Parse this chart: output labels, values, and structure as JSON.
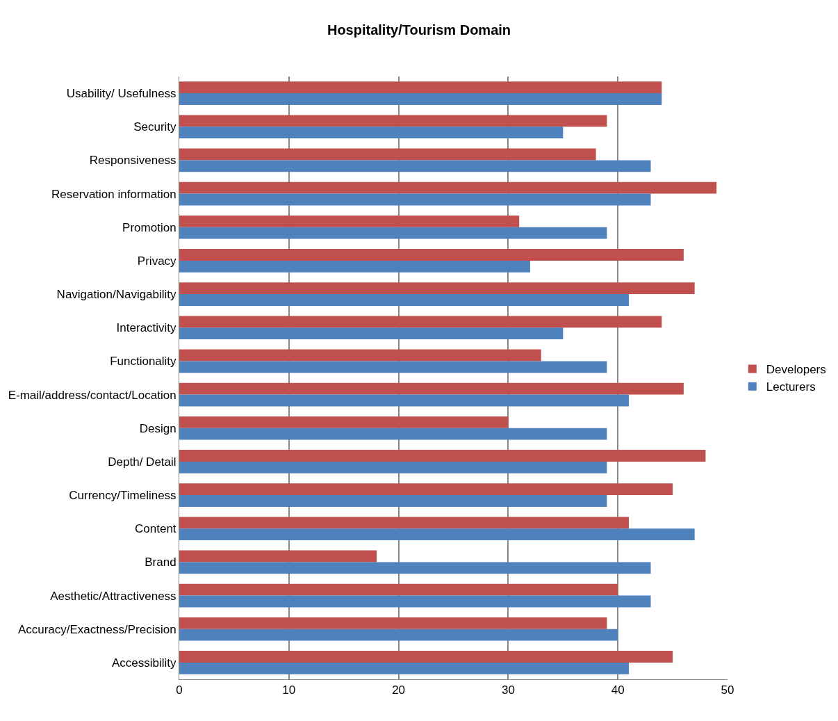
{
  "chart_data": {
    "type": "bar",
    "orientation": "horizontal",
    "title": "Hospitality/Tourism Domain",
    "categories": [
      "Usability/ Usefulness",
      "Security",
      "Responsiveness",
      "Reservation information",
      "Promotion",
      "Privacy",
      "Navigation/Navigability",
      "Interactivity",
      "Functionality",
      "E-mail/address/contact/Location",
      "Design",
      "Depth/ Detail",
      "Currency/Timeliness",
      "Content",
      "Brand",
      "Aesthetic/Attractiveness",
      "Accuracy/Exactness/Precision",
      "Accessibility"
    ],
    "series": [
      {
        "name": "Developers",
        "color": "#c0504d",
        "values": [
          44,
          39,
          38,
          49,
          31,
          46,
          47,
          44,
          33,
          46,
          30,
          48,
          45,
          41,
          18,
          40,
          39,
          45
        ]
      },
      {
        "name": "Lecturers",
        "color": "#4f81bd",
        "values": [
          44,
          35,
          43,
          43,
          39,
          32,
          41,
          35,
          39,
          41,
          39,
          39,
          39,
          47,
          43,
          43,
          40,
          41
        ]
      }
    ],
    "xlim": [
      0,
      50
    ],
    "xticks": [
      0,
      10,
      20,
      30,
      40,
      50
    ],
    "grid": "x",
    "legend": "right"
  }
}
